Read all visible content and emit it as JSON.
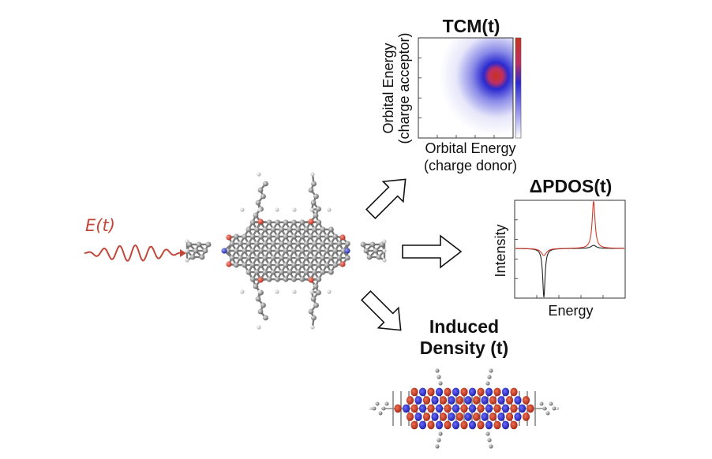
{
  "field_label": "E(t)",
  "tcm": {
    "title": "TCM(t)",
    "ylabel_line1": "Orbital Energy",
    "ylabel_line2": "(charge acceptor)",
    "xlabel_line1": "Orbital Energy",
    "xlabel_line2": "(charge donor)"
  },
  "pdos": {
    "title": "ΔPDOS(t)",
    "ylabel": "Intensity",
    "xlabel": "Energy"
  },
  "induced": {
    "title_line1": "Induced",
    "title_line2": "Density (t)"
  },
  "colors": {
    "field": "#c2473a",
    "positive": "#c8321e",
    "negative": "#2a2ad0",
    "atom_carbon": "#8c8c8c",
    "atom_oxygen": "#d23a2a",
    "atom_nitrogen": "#2f3fd0"
  }
}
